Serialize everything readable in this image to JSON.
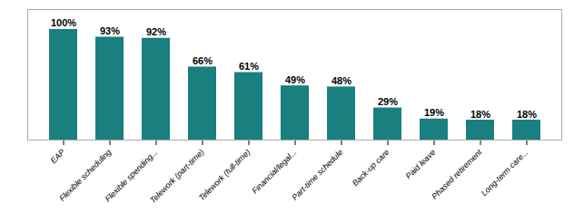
{
  "chart_data": {
    "type": "bar",
    "categories": [
      "EAP",
      "Flexible scheduling",
      "Flexible spending...",
      "Telework (part-time)",
      "Telework (full-time)",
      "Financial/legal...",
      "Part-time schedule",
      "Back-up care",
      "Paid leave",
      "Phased retirement",
      "Long-term care..."
    ],
    "values": [
      100,
      93,
      92,
      66,
      61,
      49,
      48,
      29,
      19,
      18,
      18
    ],
    "value_labels": [
      "100%",
      "93%",
      "92%",
      "66%",
      "61%",
      "49%",
      "48%",
      "29%",
      "19%",
      "18%",
      "18%"
    ],
    "color": "#1a7f7f",
    "ylim": [
      0,
      118
    ],
    "data_labels": true,
    "tick_labels": "x",
    "grid": false
  }
}
